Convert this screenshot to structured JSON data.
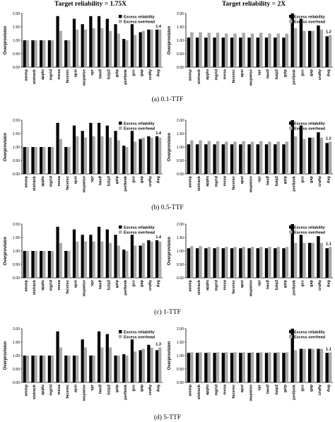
{
  "column_titles": [
    "Target reliability = 1.75X",
    "Target reliability = 2X"
  ],
  "panel_captions": [
    "(a) 0.1-TTF",
    "(b) 0.5-TTF",
    "(c) 1-TTF",
    "(d) 5-TTF"
  ],
  "colors": {
    "excess_reliability": "#000000",
    "excess_overhead": "#a8a8a8"
  },
  "chart_data": [
    {
      "type": "bar",
      "panel": "a-left",
      "categories": [
        "ammp",
        "sixtrack",
        "applu",
        "mgrid",
        "mesa",
        "facerec",
        "apsi",
        "wupwise",
        "vpr",
        "twolf",
        "bzip2",
        "gzip",
        "perlbmk",
        "gcc",
        "gap",
        "crafty",
        "Avg"
      ],
      "series": [
        {
          "name": "Excess reliability",
          "values": [
            1.0,
            1.0,
            1.0,
            1.0,
            1.9,
            1.0,
            1.8,
            1.6,
            1.9,
            1.9,
            1.8,
            1.6,
            1.05,
            1.6,
            1.3,
            1.4,
            1.4
          ]
        },
        {
          "name": "Excess overhead",
          "values": [
            1.0,
            1.0,
            1.0,
            1.0,
            1.35,
            1.0,
            1.4,
            1.4,
            1.45,
            1.45,
            1.35,
            1.25,
            1.0,
            1.2,
            1.35,
            1.4,
            1.4
          ]
        }
      ],
      "ylabel": "Overprovision",
      "ylim": [
        0,
        2
      ],
      "yticks": [
        "0.00",
        "0.50",
        "1.00",
        "1.50",
        "2.00"
      ],
      "annotation": "1.4",
      "legend": "top-right",
      "grid": false
    },
    {
      "type": "bar",
      "panel": "a-right",
      "categories": [
        "ammp",
        "sixtrack",
        "applu",
        "mgrid",
        "mesa",
        "facerec",
        "apsi",
        "wupwise",
        "vpr",
        "twolf",
        "bzip2",
        "gzip",
        "perlbmk",
        "gcc",
        "gap",
        "crafty",
        "Avg"
      ],
      "series": [
        {
          "name": "Excess reliability",
          "values": [
            1.1,
            1.1,
            1.1,
            1.1,
            1.1,
            1.1,
            1.1,
            1.1,
            1.1,
            1.1,
            1.1,
            1.1,
            2.0,
            1.8,
            1.35,
            1.55,
            1.15
          ]
        },
        {
          "name": "Excess overhead",
          "values": [
            1.3,
            1.3,
            1.28,
            1.28,
            1.25,
            1.25,
            1.28,
            1.25,
            1.28,
            1.25,
            1.25,
            1.25,
            1.45,
            1.35,
            1.35,
            1.4,
            1.2
          ]
        }
      ],
      "ylabel": "Overprovision",
      "ylim": [
        0,
        2
      ],
      "yticks": [
        "0.00",
        "0.50",
        "1.00",
        "1.50",
        "2.00"
      ],
      "annotation": "1.2",
      "legend": "top-right",
      "grid": false
    },
    {
      "type": "bar",
      "panel": "b-left",
      "categories": [
        "ammp",
        "sixtrack",
        "applu",
        "mgrid",
        "mesa",
        "facerec",
        "apsi",
        "wupwise",
        "vpr",
        "twolf",
        "bzip2",
        "gzip",
        "perlbmk",
        "gcc",
        "gap",
        "crafty",
        "Avg"
      ],
      "series": [
        {
          "name": "Excess reliability",
          "values": [
            1.0,
            1.0,
            1.0,
            1.0,
            1.9,
            1.0,
            1.8,
            1.6,
            1.9,
            1.9,
            1.8,
            1.6,
            1.05,
            1.6,
            1.3,
            1.4,
            1.4
          ]
        },
        {
          "name": "Excess overhead",
          "values": [
            1.0,
            1.0,
            1.0,
            1.0,
            1.3,
            1.0,
            1.4,
            1.35,
            1.4,
            1.4,
            1.35,
            1.25,
            1.0,
            1.2,
            1.35,
            1.35,
            1.35
          ]
        }
      ],
      "ylabel": "Overprovision",
      "ylim": [
        0,
        2
      ],
      "yticks": [
        "0.00",
        "0.50",
        "1.00",
        "1.50",
        "2.00"
      ],
      "annotation": "1.4",
      "legend": "top-right",
      "grid": false
    },
    {
      "type": "bar",
      "panel": "b-right",
      "categories": [
        "ammp",
        "sixtrack",
        "applu",
        "mgrid",
        "mesa",
        "facerec",
        "apsi",
        "wupwise",
        "vpr",
        "twolf",
        "bzip2",
        "gzip",
        "perlbmk",
        "gcc",
        "gap",
        "crafty",
        "Avg"
      ],
      "series": [
        {
          "name": "Excess reliability",
          "values": [
            1.1,
            1.1,
            1.1,
            1.1,
            1.1,
            1.1,
            1.1,
            1.1,
            1.1,
            1.1,
            1.1,
            1.1,
            2.0,
            1.8,
            1.35,
            1.55,
            1.15
          ]
        },
        {
          "name": "Excess overhead",
          "values": [
            1.25,
            1.25,
            1.22,
            1.22,
            1.2,
            1.2,
            1.22,
            1.2,
            1.22,
            1.2,
            1.2,
            1.2,
            1.4,
            1.3,
            1.35,
            1.35,
            1.2
          ]
        }
      ],
      "ylabel": "Overprovision",
      "ylim": [
        0,
        2
      ],
      "yticks": [
        "0.00",
        "0.50",
        "1.00",
        "1.50",
        "2.00"
      ],
      "annotation": "1.2",
      "legend": "top-right",
      "grid": false
    },
    {
      "type": "bar",
      "panel": "c-left",
      "categories": [
        "ammp",
        "sixtrack",
        "applu",
        "mgrid",
        "mesa",
        "facerec",
        "apsi",
        "wupwise",
        "vpr",
        "twolf",
        "bzip2",
        "gzip",
        "perlbmk",
        "gcc",
        "gap",
        "crafty",
        "Avg"
      ],
      "series": [
        {
          "name": "Excess reliability",
          "values": [
            1.0,
            1.0,
            1.0,
            1.0,
            1.9,
            1.0,
            1.8,
            1.6,
            1.6,
            1.9,
            1.8,
            1.6,
            1.05,
            1.6,
            1.2,
            1.4,
            1.4
          ]
        },
        {
          "name": "Excess overhead",
          "values": [
            1.0,
            1.0,
            1.0,
            1.0,
            1.3,
            1.0,
            1.35,
            1.35,
            1.35,
            1.35,
            1.3,
            1.2,
            1.0,
            1.2,
            1.3,
            1.35,
            1.35
          ]
        }
      ],
      "ylabel": "Overprovision",
      "ylim": [
        0,
        2
      ],
      "yticks": [
        "0.00",
        "0.50",
        "1.00",
        "1.50",
        "2.00"
      ],
      "annotation": "1.4",
      "legend": "top-right",
      "grid": false
    },
    {
      "type": "bar",
      "panel": "c-right",
      "categories": [
        "ammp",
        "sixtrack",
        "applu",
        "mgrid",
        "mesa",
        "facerec",
        "apsi",
        "wupwise",
        "vpr",
        "twolf",
        "bzip2",
        "gzip",
        "perlbmk",
        "gcc",
        "gap",
        "crafty",
        "Avg"
      ],
      "series": [
        {
          "name": "Excess reliability",
          "values": [
            1.1,
            1.1,
            1.1,
            1.1,
            1.1,
            1.1,
            1.1,
            1.1,
            1.1,
            1.1,
            1.1,
            1.1,
            2.0,
            1.6,
            1.3,
            1.55,
            1.1
          ]
        },
        {
          "name": "Excess overhead",
          "values": [
            1.18,
            1.18,
            1.15,
            1.15,
            1.15,
            1.15,
            1.15,
            1.15,
            1.15,
            1.15,
            1.15,
            1.15,
            1.3,
            1.3,
            1.3,
            1.3,
            1.15
          ]
        }
      ],
      "ylabel": "Overprovision",
      "ylim": [
        0,
        2
      ],
      "yticks": [
        "0.00",
        "0.50",
        "1.00",
        "1.50",
        "2.00"
      ],
      "annotation": "1.1",
      "legend": "top-right",
      "grid": false
    },
    {
      "type": "bar",
      "panel": "d-left",
      "categories": [
        "ammp",
        "sixtrack",
        "applu",
        "mgrid",
        "mesa",
        "facerec",
        "apsi",
        "wupwise",
        "vpr",
        "twolf",
        "bzip2",
        "gzip",
        "perlbmk",
        "gcc",
        "gap",
        "crafty",
        "Avg"
      ],
      "series": [
        {
          "name": "Excess reliability",
          "values": [
            1.0,
            1.0,
            1.0,
            1.0,
            1.9,
            1.0,
            1.0,
            1.6,
            1.0,
            1.9,
            1.8,
            1.0,
            1.05,
            1.6,
            1.2,
            1.4,
            1.2
          ]
        },
        {
          "name": "Excess overhead",
          "values": [
            1.0,
            1.0,
            1.0,
            1.0,
            1.3,
            1.0,
            1.0,
            1.3,
            1.0,
            1.3,
            1.3,
            1.0,
            1.0,
            1.15,
            1.25,
            1.3,
            1.3
          ]
        }
      ],
      "ylabel": "Overprovision",
      "ylim": [
        0,
        2
      ],
      "yticks": [
        "0.00",
        "0.50",
        "1.00",
        "1.50",
        "2.00"
      ],
      "annotation": "1.3",
      "legend": "top-right",
      "grid": false
    },
    {
      "type": "bar",
      "panel": "d-right",
      "categories": [
        "ammp",
        "sixtrack",
        "applu",
        "mgrid",
        "mesa",
        "facerec",
        "apsi",
        "wupwise",
        "vpr",
        "twolf",
        "bzip2",
        "gzip",
        "perlbmk",
        "gcc",
        "gap",
        "crafty",
        "Avg"
      ],
      "series": [
        {
          "name": "Excess reliability",
          "values": [
            1.1,
            1.1,
            1.1,
            1.1,
            1.1,
            1.1,
            1.1,
            1.1,
            1.1,
            1.1,
            1.1,
            1.1,
            2.0,
            1.25,
            1.25,
            1.25,
            1.1
          ]
        },
        {
          "name": "Excess overhead",
          "values": [
            1.12,
            1.12,
            1.12,
            1.12,
            1.12,
            1.12,
            1.12,
            1.12,
            1.12,
            1.12,
            1.12,
            1.12,
            1.2,
            1.25,
            1.25,
            1.25,
            1.12
          ]
        }
      ],
      "ylabel": "Overprovision",
      "ylim": [
        0,
        2
      ],
      "yticks": [
        "0.00",
        "0.50",
        "1.00",
        "1.50",
        "2.00"
      ],
      "annotation": "1.1",
      "legend": "top-right",
      "grid": false
    }
  ]
}
